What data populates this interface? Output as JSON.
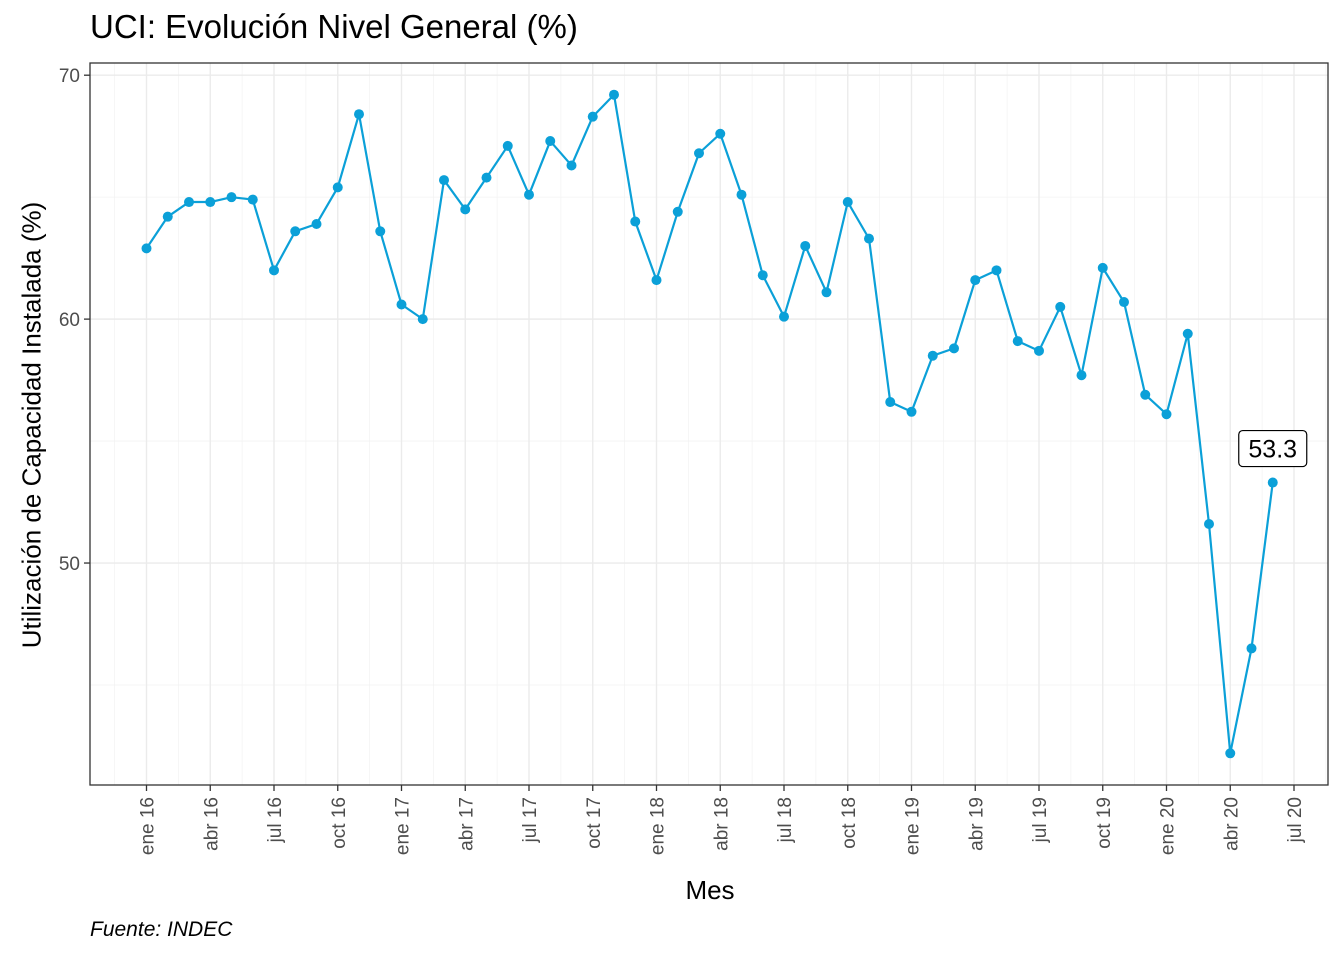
{
  "chart_data": {
    "type": "line",
    "title": "UCI: Evolución Nivel General (%)",
    "xlabel": "Mes",
    "ylabel": "Utilización de Capacidad Instalada (%)",
    "caption": "Fuente: INDEC",
    "ylim": [
      40.9,
      70.5
    ],
    "y_ticks": [
      50,
      60,
      70
    ],
    "x_ticks": [
      "ene 16",
      "abr 16",
      "jul 16",
      "oct 16",
      "ene 17",
      "abr 17",
      "jul 17",
      "oct 17",
      "ene 18",
      "abr 18",
      "jul 18",
      "oct 18",
      "ene 19",
      "abr 19",
      "jul 19",
      "oct 19",
      "ene 20",
      "abr 20",
      "jul 20"
    ],
    "grid": true,
    "color": "#0ba0d8",
    "x": [
      "2016-01",
      "2016-02",
      "2016-03",
      "2016-04",
      "2016-05",
      "2016-06",
      "2016-07",
      "2016-08",
      "2016-09",
      "2016-10",
      "2016-11",
      "2016-12",
      "2017-01",
      "2017-02",
      "2017-03",
      "2017-04",
      "2017-05",
      "2017-06",
      "2017-07",
      "2017-08",
      "2017-09",
      "2017-10",
      "2017-11",
      "2017-12",
      "2018-01",
      "2018-02",
      "2018-03",
      "2018-04",
      "2018-05",
      "2018-06",
      "2018-07",
      "2018-08",
      "2018-09",
      "2018-10",
      "2018-11",
      "2018-12",
      "2019-01",
      "2019-02",
      "2019-03",
      "2019-04",
      "2019-05",
      "2019-06",
      "2019-07",
      "2019-08",
      "2019-09",
      "2019-10",
      "2019-11",
      "2019-12",
      "2020-01",
      "2020-02",
      "2020-03",
      "2020-04",
      "2020-05",
      "2020-06"
    ],
    "values": [
      62.9,
      64.2,
      64.8,
      64.8,
      65.0,
      64.9,
      62.0,
      63.6,
      63.9,
      65.4,
      68.4,
      63.6,
      60.6,
      60.0,
      65.7,
      64.5,
      65.8,
      67.1,
      65.1,
      67.3,
      66.3,
      68.3,
      69.2,
      64.0,
      61.6,
      64.4,
      66.8,
      67.6,
      65.1,
      61.8,
      60.1,
      63.0,
      61.1,
      64.8,
      63.3,
      56.6,
      56.2,
      58.5,
      58.8,
      61.6,
      62.0,
      59.1,
      58.7,
      60.5,
      57.7,
      62.1,
      60.7,
      56.9,
      56.1,
      59.4,
      51.6,
      42.2,
      46.5,
      53.3
    ],
    "annotation": {
      "label": "53.3",
      "x": "2020-06",
      "y": 53.3
    }
  }
}
